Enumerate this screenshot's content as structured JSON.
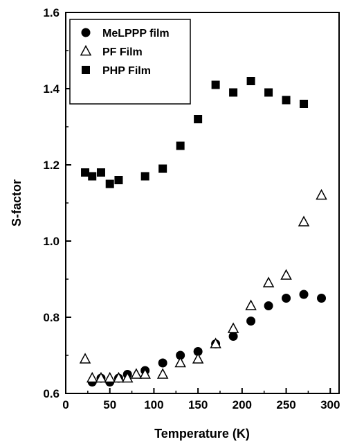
{
  "chart_data": {
    "type": "scatter",
    "title": "",
    "xlabel": "Temperature (K)",
    "ylabel": "S-factor",
    "xlim": [
      0,
      310
    ],
    "ylim": [
      0.6,
      1.6
    ],
    "xticks": [
      0,
      50,
      100,
      150,
      200,
      250,
      300
    ],
    "yticks": [
      0.6,
      0.8,
      1.0,
      1.2,
      1.4,
      1.6
    ],
    "xtick_labels": [
      "0",
      "50",
      "100",
      "150",
      "200",
      "250",
      "300"
    ],
    "ytick_labels": [
      "0.6",
      "0.8",
      "1.0",
      "1.2",
      "1.4",
      "1.6"
    ],
    "grid": false,
    "legend_position": "top-left",
    "series": [
      {
        "name": "MeLPPP film",
        "marker": "filled-circle",
        "color": "#000000",
        "points": [
          [
            30,
            0.63
          ],
          [
            40,
            0.64
          ],
          [
            50,
            0.63
          ],
          [
            60,
            0.64
          ],
          [
            70,
            0.65
          ],
          [
            90,
            0.66
          ],
          [
            110,
            0.68
          ],
          [
            130,
            0.7
          ],
          [
            150,
            0.71
          ],
          [
            170,
            0.73
          ],
          [
            190,
            0.75
          ],
          [
            210,
            0.79
          ],
          [
            230,
            0.83
          ],
          [
            250,
            0.85
          ],
          [
            270,
            0.86
          ],
          [
            290,
            0.85
          ]
        ]
      },
      {
        "name": "PF Film",
        "marker": "open-triangle",
        "color": "#000000",
        "points": [
          [
            22,
            0.69
          ],
          [
            30,
            0.64
          ],
          [
            40,
            0.64
          ],
          [
            50,
            0.64
          ],
          [
            60,
            0.64
          ],
          [
            70,
            0.64
          ],
          [
            80,
            0.65
          ],
          [
            90,
            0.65
          ],
          [
            110,
            0.65
          ],
          [
            130,
            0.68
          ],
          [
            150,
            0.69
          ],
          [
            170,
            0.73
          ],
          [
            190,
            0.77
          ],
          [
            210,
            0.83
          ],
          [
            230,
            0.89
          ],
          [
            250,
            0.91
          ],
          [
            270,
            1.05
          ],
          [
            290,
            1.12
          ]
        ]
      },
      {
        "name": "PHP Film",
        "marker": "filled-square",
        "color": "#000000",
        "points": [
          [
            22,
            1.18
          ],
          [
            30,
            1.17
          ],
          [
            40,
            1.18
          ],
          [
            50,
            1.15
          ],
          [
            60,
            1.16
          ],
          [
            90,
            1.17
          ],
          [
            110,
            1.19
          ],
          [
            130,
            1.25
          ],
          [
            150,
            1.32
          ],
          [
            170,
            1.41
          ],
          [
            190,
            1.39
          ],
          [
            210,
            1.42
          ],
          [
            230,
            1.39
          ],
          [
            250,
            1.37
          ],
          [
            270,
            1.36
          ]
        ]
      }
    ]
  }
}
